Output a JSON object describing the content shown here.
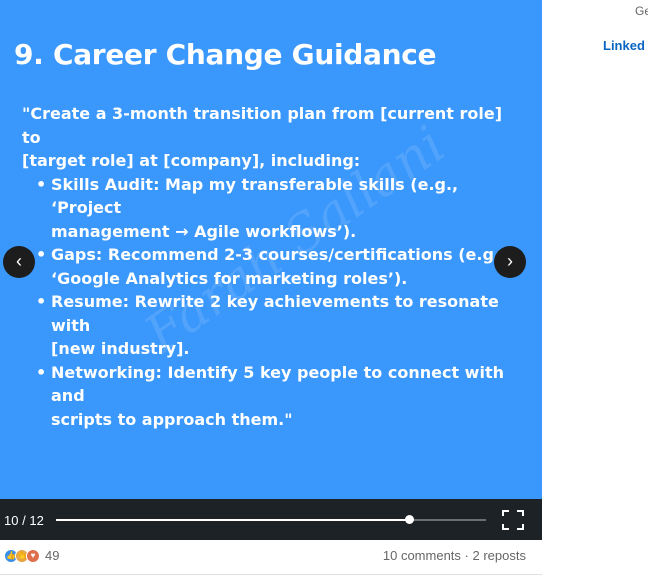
{
  "slide": {
    "title": "9. Career Change Guidance",
    "intro_line1": "\"Create a 3-month transition plan from [current role] to",
    "intro_line2": "[target role] at [company], including:",
    "bullets": [
      {
        "line1": "Skills Audit: Map my transferable skills (e.g., ‘Project",
        "line2": "management → Agile workflows’)."
      },
      {
        "line1": "Gaps: Recommend 2-3 courses/certifications (e.g.,",
        "line2": "‘Google Analytics for marketing roles’)."
      },
      {
        "line1": "Resume: Rewrite 2 key achievements to resonate with",
        "line2": "[new industry]."
      },
      {
        "line1": "Networking: Identify 5 key people to connect with and",
        "line2": "scripts to approach them.\""
      }
    ],
    "watermark": "Farah Sallani"
  },
  "carousel": {
    "prev_icon": "chevron-left-icon",
    "next_icon": "chevron-right-icon",
    "prev_glyph": "‹",
    "next_glyph": "›",
    "current_page": "10",
    "separator": "/",
    "total_pages": "12",
    "progress": 0.82
  },
  "social": {
    "reaction_count": "49",
    "comments": "10 comments",
    "dot": "·",
    "reposts": "2 reposts"
  },
  "rail": {
    "top_text": "Ge",
    "logo_text": "Linked"
  },
  "colors": {
    "slide_bg": "#3a97fb",
    "controls_bg": "#1d2226",
    "linkedin_blue": "#0a66c2"
  }
}
